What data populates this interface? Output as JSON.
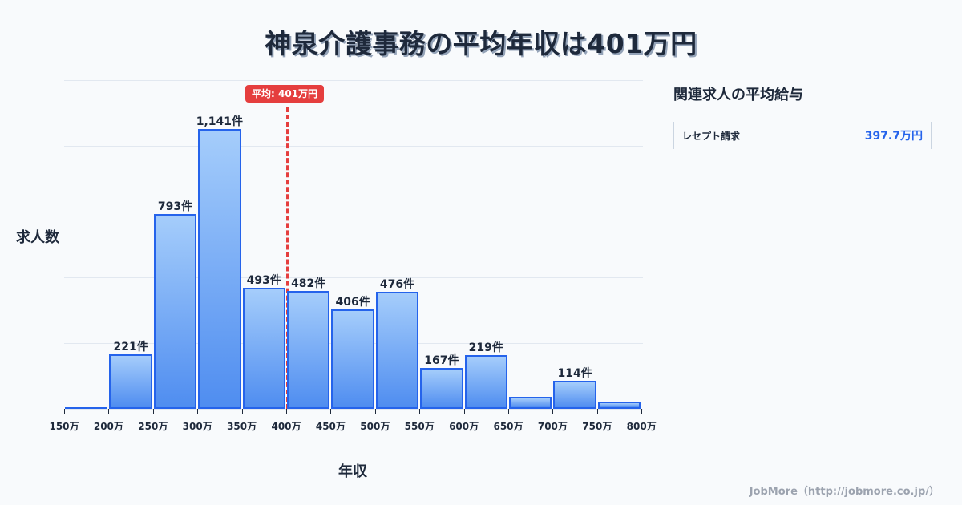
{
  "title": "神泉介護事務の平均年収は401万円",
  "chart_data": {
    "type": "bar",
    "title": "神泉介護事務の平均年収は401万円",
    "xlabel": "年収",
    "ylabel": "求人数",
    "x_ticks": [
      "150万",
      "200万",
      "250万",
      "300万",
      "350万",
      "400万",
      "450万",
      "500万",
      "550万",
      "600万",
      "650万",
      "700万",
      "750万",
      "800万"
    ],
    "categories": [
      "150-200万",
      "200-250万",
      "250-300万",
      "300-350万",
      "350-400万",
      "400-450万",
      "450-500万",
      "500-550万",
      "550-600万",
      "600-650万",
      "650-700万",
      "700-750万",
      "750-800万"
    ],
    "values": [
      5,
      221,
      793,
      1141,
      493,
      482,
      406,
      476,
      167,
      219,
      50,
      114,
      28
    ],
    "data_labels": [
      "",
      "221件",
      "793件",
      "1,141件",
      "493件",
      "482件",
      "406件",
      "476件",
      "167件",
      "219件",
      "",
      "114件",
      ""
    ],
    "ylim": [
      0,
      1340
    ],
    "grid": true,
    "mean_line": {
      "value": 401,
      "label": "平均: 401万円",
      "color": "#e53e3e"
    },
    "bar_color": "#2563eb",
    "legend": null
  },
  "axis": {
    "ylabel": "求人数",
    "xlabel": "年収"
  },
  "mean_badge": "平均: 401万円",
  "sidebar": {
    "title": "関連求人の平均給与",
    "items": [
      {
        "name": "レセプト請求",
        "value": "397.7万円"
      }
    ]
  },
  "footer": "JobMore（http://jobmore.co.jp/）"
}
